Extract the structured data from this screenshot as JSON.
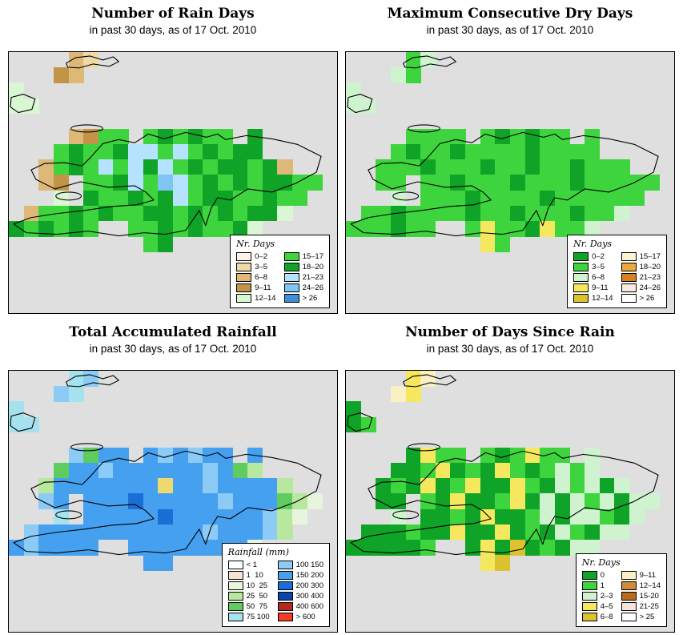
{
  "page": {
    "background": "#FFFFFF",
    "map_background": "#DFDFDF"
  },
  "panels": [
    {
      "id": "number-of-rain-days",
      "title": "Number of Rain Days",
      "subtitle": "in past 30 days, as of  17 Oct. 2010",
      "legend": {
        "title": "Nr. Days",
        "entries": [
          {
            "label": "0–2",
            "color": "#FDF3E8"
          },
          {
            "label": "3–5",
            "color": "#EFD9A7"
          },
          {
            "label": "6–8",
            "color": "#DDB877"
          },
          {
            "label": "9–11",
            "color": "#C39448"
          },
          {
            "label": "12–14",
            "color": "#D9F7D2"
          },
          {
            "label": "15–17",
            "color": "#3ED43E"
          },
          {
            "label": "18–20",
            "color": "#0FA428"
          },
          {
            "label": "21–23",
            "color": "#B5E3FF"
          },
          {
            "label": "24–26",
            "color": "#7FC4F2"
          },
          {
            "label": "> 26",
            "color": "#3E8FD6"
          }
        ]
      },
      "palette": {
        "a": "#FDF3E8",
        "b": "#EFD9A7",
        "c": "#DDB877",
        "d": "#C39448",
        "e": "#D9F7D2",
        "f": "#3ED43E",
        "g": "#0FA428",
        "h": "#B5E3FF",
        "i": "#7FC4F2",
        "j": "#3E8FD6"
      },
      "grid": [
        "....cb................",
        "...dc.................",
        "e.....................",
        "ee....................",
        "......................",
        "....cdff.fgfgff.g.....",
        "...fgffghhfhfgfgg.....",
        "..cfgfhfhghfgfggfgc...",
        "..cd.ffghfihfgfgfggff.",
        "...e.gffgfghfggffgff..",
        ".cffgfgffggfgfgfgge...",
        "gfgfgf..ffgfgffge.....",
        ".........fg...........",
        "......................",
        "......................",
        "......................",
        "......................"
      ]
    },
    {
      "id": "maximum-consecutive-dry-days",
      "title": "Maximum Consecutive Dry Days",
      "subtitle": "in past 30 days, as of  17 Oct. 2010",
      "legend": {
        "title": "Nr. Days",
        "entries": [
          {
            "label": "0–2",
            "color": "#0FA428"
          },
          {
            "label": "3–5",
            "color": "#3ED43E"
          },
          {
            "label": "6–8",
            "color": "#CFF3CF"
          },
          {
            "label": "9–11",
            "color": "#F5E85E"
          },
          {
            "label": "12–14",
            "color": "#DCC22F"
          },
          {
            "label": "15–17",
            "color": "#FBF4D2"
          },
          {
            "label": "18–20",
            "color": "#EDA83E"
          },
          {
            "label": "21–23",
            "color": "#D6821E"
          },
          {
            "label": "24–26",
            "color": "#FAEAE4"
          },
          {
            "label": "> 26",
            "color": "#FFFFFF"
          }
        ]
      },
      "palette": {
        "A": "#0FA428",
        "B": "#3ED43E",
        "C": "#CFF3CF",
        "D": "#F5E85E",
        "E": "#DCC22F",
        "F": "#FBF4D2",
        "G": "#EDA83E",
        "H": "#D6821E",
        "I": "#FAEAE4",
        "J": "#FFFFFF"
      },
      "grid": [
        "....BC................",
        "...CB.................",
        "C.....................",
        "CC....................",
        "......................",
        "....BBBB.BABABB.B.....",
        "...BABBABBBBABBBB.....",
        "..BBBABBBABBABBABBB...",
        "..BB.BBABBBABBBABBBBB.",
        "...C.BBBABBBBABBBBBB..",
        ".BBABBBBABBABBBABBC...",
        "BBBABB..BDBBADBBC.....",
        ".........DB...........",
        "......................",
        "......................",
        "......................",
        "......................"
      ]
    },
    {
      "id": "total-accumulated-rainfall",
      "title": "Total Accumulated Rainfall",
      "subtitle": "in past 30 days, as of  17 Oct. 2010",
      "legend": {
        "title": "Rainfall (mm)",
        "entries": [
          {
            "label": "< 1",
            "color": "#FFFFFF"
          },
          {
            "label": "1  10",
            "color": "#F7E2D2"
          },
          {
            "label": "10  25",
            "color": "#E7F5DC"
          },
          {
            "label": "25  50",
            "color": "#B8E89E"
          },
          {
            "label": "50  75",
            "color": "#5FCC5F"
          },
          {
            "label": "75 100",
            "color": "#A5E2EE"
          },
          {
            "label": "100 150",
            "color": "#8CCBF5"
          },
          {
            "label": "150 200",
            "color": "#45A0F0"
          },
          {
            "label": "200 300",
            "color": "#1B6ED6"
          },
          {
            "label": "300 400",
            "color": "#0A46A8"
          },
          {
            "label": "400 600",
            "color": "#B5291D"
          },
          {
            "label": "> 600",
            "color": "#F53A28"
          }
        ]
      },
      "palette": {
        "w": "#FFFFFF",
        "p": "#F7E2D2",
        "q": "#E7F5DC",
        "r": "#B8E89E",
        "s": "#5FCC5F",
        "t": "#A5E2EE",
        "u": "#8CCBF5",
        "v": "#45A0F0",
        "x": "#1B6ED6",
        "n": "#0A46A8",
        "m": "#B5291D",
        "o": "#F53A28",
        "y": "#EDD96E"
      },
      "grid": [
        "....tu................",
        "...ut.................",
        "t.....................",
        "tt....................",
        "......................",
        "....usvv.vuvuvv.v.....",
        "...svvuvvvvvvuvsr.....",
        "..rvvvvvvvyvvuvvvvr...",
        "..uv.vvvxvvvvvuvvvsrq.",
        "...t.vvvvvxvvvvvvurq..",
        ".uvvvvvvvvvvvuvvvur...",
        "vuvvvv..vvvvvvvvq.....",
        ".........vv...........",
        "......................",
        "......................",
        "......................",
        "......................"
      ]
    },
    {
      "id": "number-of-days-since-rain",
      "title": "Number of Days Since Rain",
      "subtitle": "in past 30 days, as of  17 Oct. 2010",
      "legend": {
        "title": "Nr. Days",
        "entries": [
          {
            "label": "0",
            "color": "#0FA428"
          },
          {
            "label": "1",
            "color": "#3ED43E"
          },
          {
            "label": "2–3",
            "color": "#CFF3CF"
          },
          {
            "label": "4–5",
            "color": "#F5E85E"
          },
          {
            "label": "6–8",
            "color": "#DCC22F"
          },
          {
            "label": "9–11",
            "color": "#FBF0C4"
          },
          {
            "label": "12–14",
            "color": "#CE8B3A"
          },
          {
            "label": "15-20",
            "color": "#B56A1C"
          },
          {
            "label": "21-25",
            "color": "#F8E3DC"
          },
          {
            "label": "> 25",
            "color": "#FFFFFF"
          }
        ]
      },
      "palette": {
        "K": "#0FA428",
        "L": "#3ED43E",
        "M": "#CFF3CF",
        "N": "#F5E85E",
        "O": "#DCC22F",
        "P": "#FBF0C4",
        "Q": "#CE8B3A",
        "R": "#B56A1C",
        "S": "#F8E3DC",
        "T": "#FFFFFF"
      },
      "grid": [
        "....NP................",
        "...PN.................",
        "K.....................",
        "KL....................",
        "......................",
        "....KNLL.LKLNLL.M.....",
        "...KKLNKLKNLKLMLM.....",
        "..KLKNKLNKKNLKMLMKM...",
        "..KK.LKNKKLNKMKMLMKMM.",
        "...M.KKLKNKKLMKMMLKM..",
        ".KKKLKKNKKNKLKMLKMM...",
        "KKKKKL..KNKOKLKMM.....",
        ".........NO...........",
        "......................",
        "......................",
        "......................",
        "......................"
      ]
    }
  ]
}
